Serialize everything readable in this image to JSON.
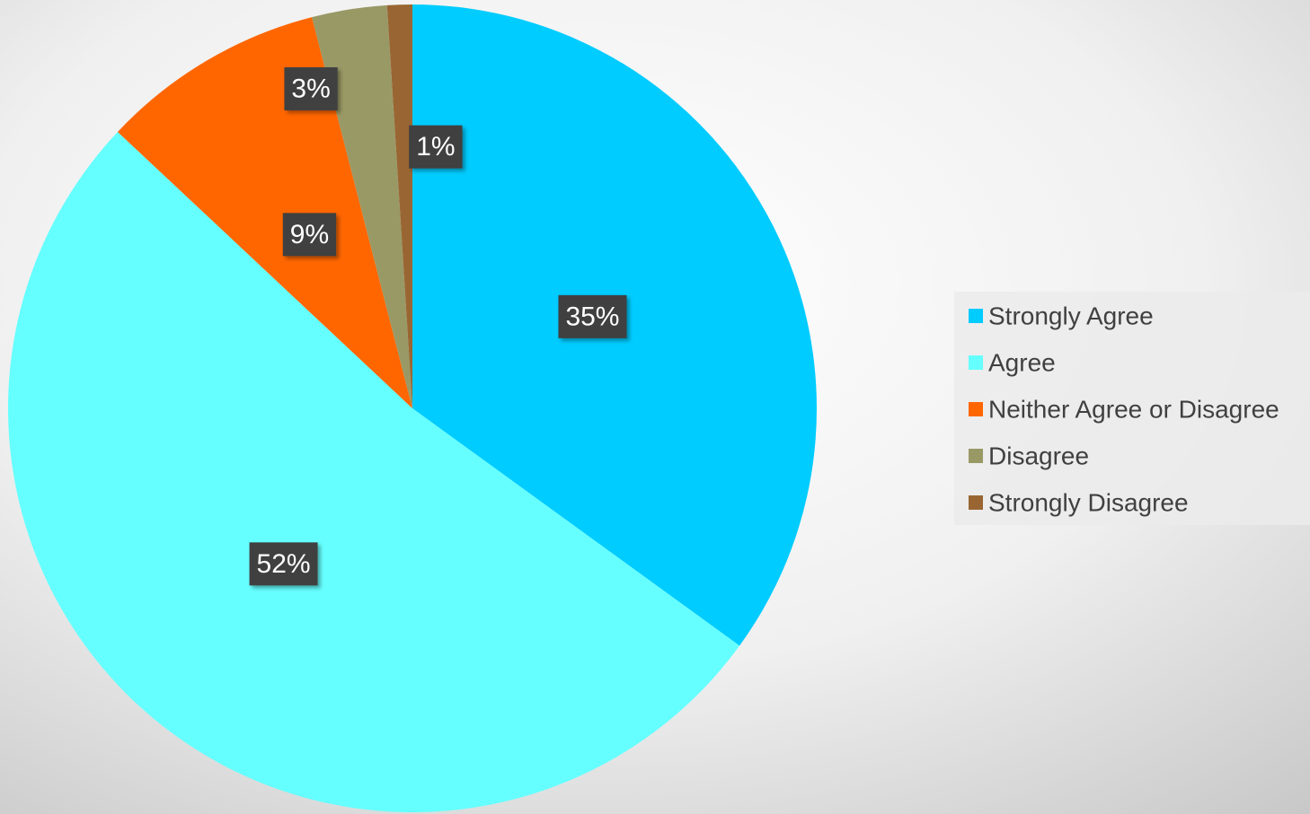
{
  "chart_data": {
    "type": "pie",
    "categories": [
      "Strongly Agree",
      "Agree",
      "Neither Agree or Disagree",
      "Disagree",
      "Strongly Disagree"
    ],
    "values": [
      35,
      52,
      9,
      3,
      1
    ],
    "value_labels": [
      "35%",
      "52%",
      "9%",
      "3%",
      "1%"
    ],
    "colors": [
      "#00ccff",
      "#66ffff",
      "#ff6600",
      "#999966",
      "#996633"
    ],
    "legend": "right"
  }
}
